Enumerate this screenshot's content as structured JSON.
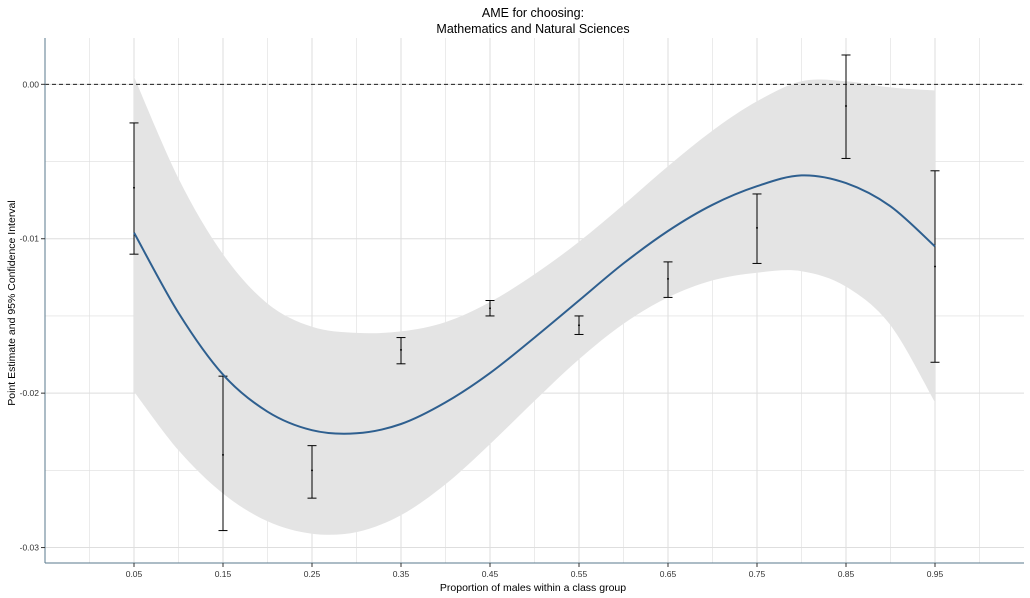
{
  "chart_data": {
    "type": "scatter",
    "title": "AME for choosing:",
    "subtitle": "Mathematics and Natural Sciences",
    "xlabel": "Proportion of males within a class group",
    "ylabel": "Point Estimate and 95% Confidence Interval",
    "xlim": [
      -0.05,
      1.05
    ],
    "ylim": [
      -0.031,
      0.003
    ],
    "x_ticks": [
      0.05,
      0.15,
      0.25,
      0.35,
      0.45,
      0.55,
      0.65,
      0.75,
      0.85,
      0.95
    ],
    "x_tick_labels": [
      "0.05",
      "0.15",
      "0.25",
      "0.35",
      "0.45",
      "0.55",
      "0.65",
      "0.75",
      "0.85",
      "0.95"
    ],
    "y_ticks": [
      -0.03,
      -0.02,
      -0.01,
      0.0
    ],
    "y_tick_labels": [
      "-0.03",
      "-0.02",
      "-0.01",
      "0.00"
    ],
    "reference_line_y": 0.0,
    "grid": true,
    "points": [
      {
        "x": 0.05,
        "y": -0.0067,
        "lower": -0.011,
        "upper": -0.0025
      },
      {
        "x": 0.15,
        "y": -0.024,
        "lower": -0.0289,
        "upper": -0.0189
      },
      {
        "x": 0.25,
        "y": -0.025,
        "lower": -0.0268,
        "upper": -0.0234
      },
      {
        "x": 0.35,
        "y": -0.0172,
        "lower": -0.0181,
        "upper": -0.0164
      },
      {
        "x": 0.45,
        "y": -0.0145,
        "lower": -0.015,
        "upper": -0.014
      },
      {
        "x": 0.55,
        "y": -0.0156,
        "lower": -0.0162,
        "upper": -0.015
      },
      {
        "x": 0.65,
        "y": -0.0126,
        "lower": -0.0138,
        "upper": -0.0115
      },
      {
        "x": 0.75,
        "y": -0.0093,
        "lower": -0.0116,
        "upper": -0.0071
      },
      {
        "x": 0.85,
        "y": -0.0014,
        "lower": -0.0048,
        "upper": 0.0019
      },
      {
        "x": 0.95,
        "y": -0.0118,
        "lower": -0.018,
        "upper": -0.0056
      }
    ],
    "smooth_fit": [
      {
        "x": 0.05,
        "y": -0.0096,
        "lower": -0.0199,
        "upper": 0.0005
      },
      {
        "x": 0.1,
        "y": -0.0148,
        "lower": -0.0237,
        "upper": -0.0061
      },
      {
        "x": 0.15,
        "y": -0.0188,
        "lower": -0.0265,
        "upper": -0.011
      },
      {
        "x": 0.2,
        "y": -0.0212,
        "lower": -0.0283,
        "upper": -0.0142
      },
      {
        "x": 0.25,
        "y": -0.0224,
        "lower": -0.0291,
        "upper": -0.0157
      },
      {
        "x": 0.3,
        "y": -0.0226,
        "lower": -0.029,
        "upper": -0.0161
      },
      {
        "x": 0.35,
        "y": -0.022,
        "lower": -0.0279,
        "upper": -0.016
      },
      {
        "x": 0.4,
        "y": -0.0206,
        "lower": -0.0259,
        "upper": -0.0154
      },
      {
        "x": 0.45,
        "y": -0.0187,
        "lower": -0.0233,
        "upper": -0.0141
      },
      {
        "x": 0.5,
        "y": -0.0164,
        "lower": -0.0205,
        "upper": -0.0123
      },
      {
        "x": 0.55,
        "y": -0.014,
        "lower": -0.0178,
        "upper": -0.0102
      },
      {
        "x": 0.6,
        "y": -0.0116,
        "lower": -0.0155,
        "upper": -0.0078
      },
      {
        "x": 0.65,
        "y": -0.0095,
        "lower": -0.0138,
        "upper": -0.0053
      },
      {
        "x": 0.7,
        "y": -0.0078,
        "lower": -0.0127,
        "upper": -0.003
      },
      {
        "x": 0.75,
        "y": -0.0066,
        "lower": -0.0122,
        "upper": -0.0011
      },
      {
        "x": 0.8,
        "y": -0.0059,
        "lower": -0.0121,
        "upper": 0.0002
      },
      {
        "x": 0.85,
        "y": -0.0064,
        "lower": -0.0131,
        "upper": 0.0002
      },
      {
        "x": 0.9,
        "y": -0.0079,
        "lower": -0.0156,
        "upper": -0.0002
      },
      {
        "x": 0.95,
        "y": -0.0105,
        "lower": -0.0206,
        "upper": -0.0004
      }
    ],
    "colors": {
      "fit_line": "#2e5f8f",
      "ribbon": "#e4e4e4",
      "error_bar": "#000000",
      "grid": "#dedede",
      "axis": "#5a7a8c",
      "reference_line": "#000000"
    }
  }
}
